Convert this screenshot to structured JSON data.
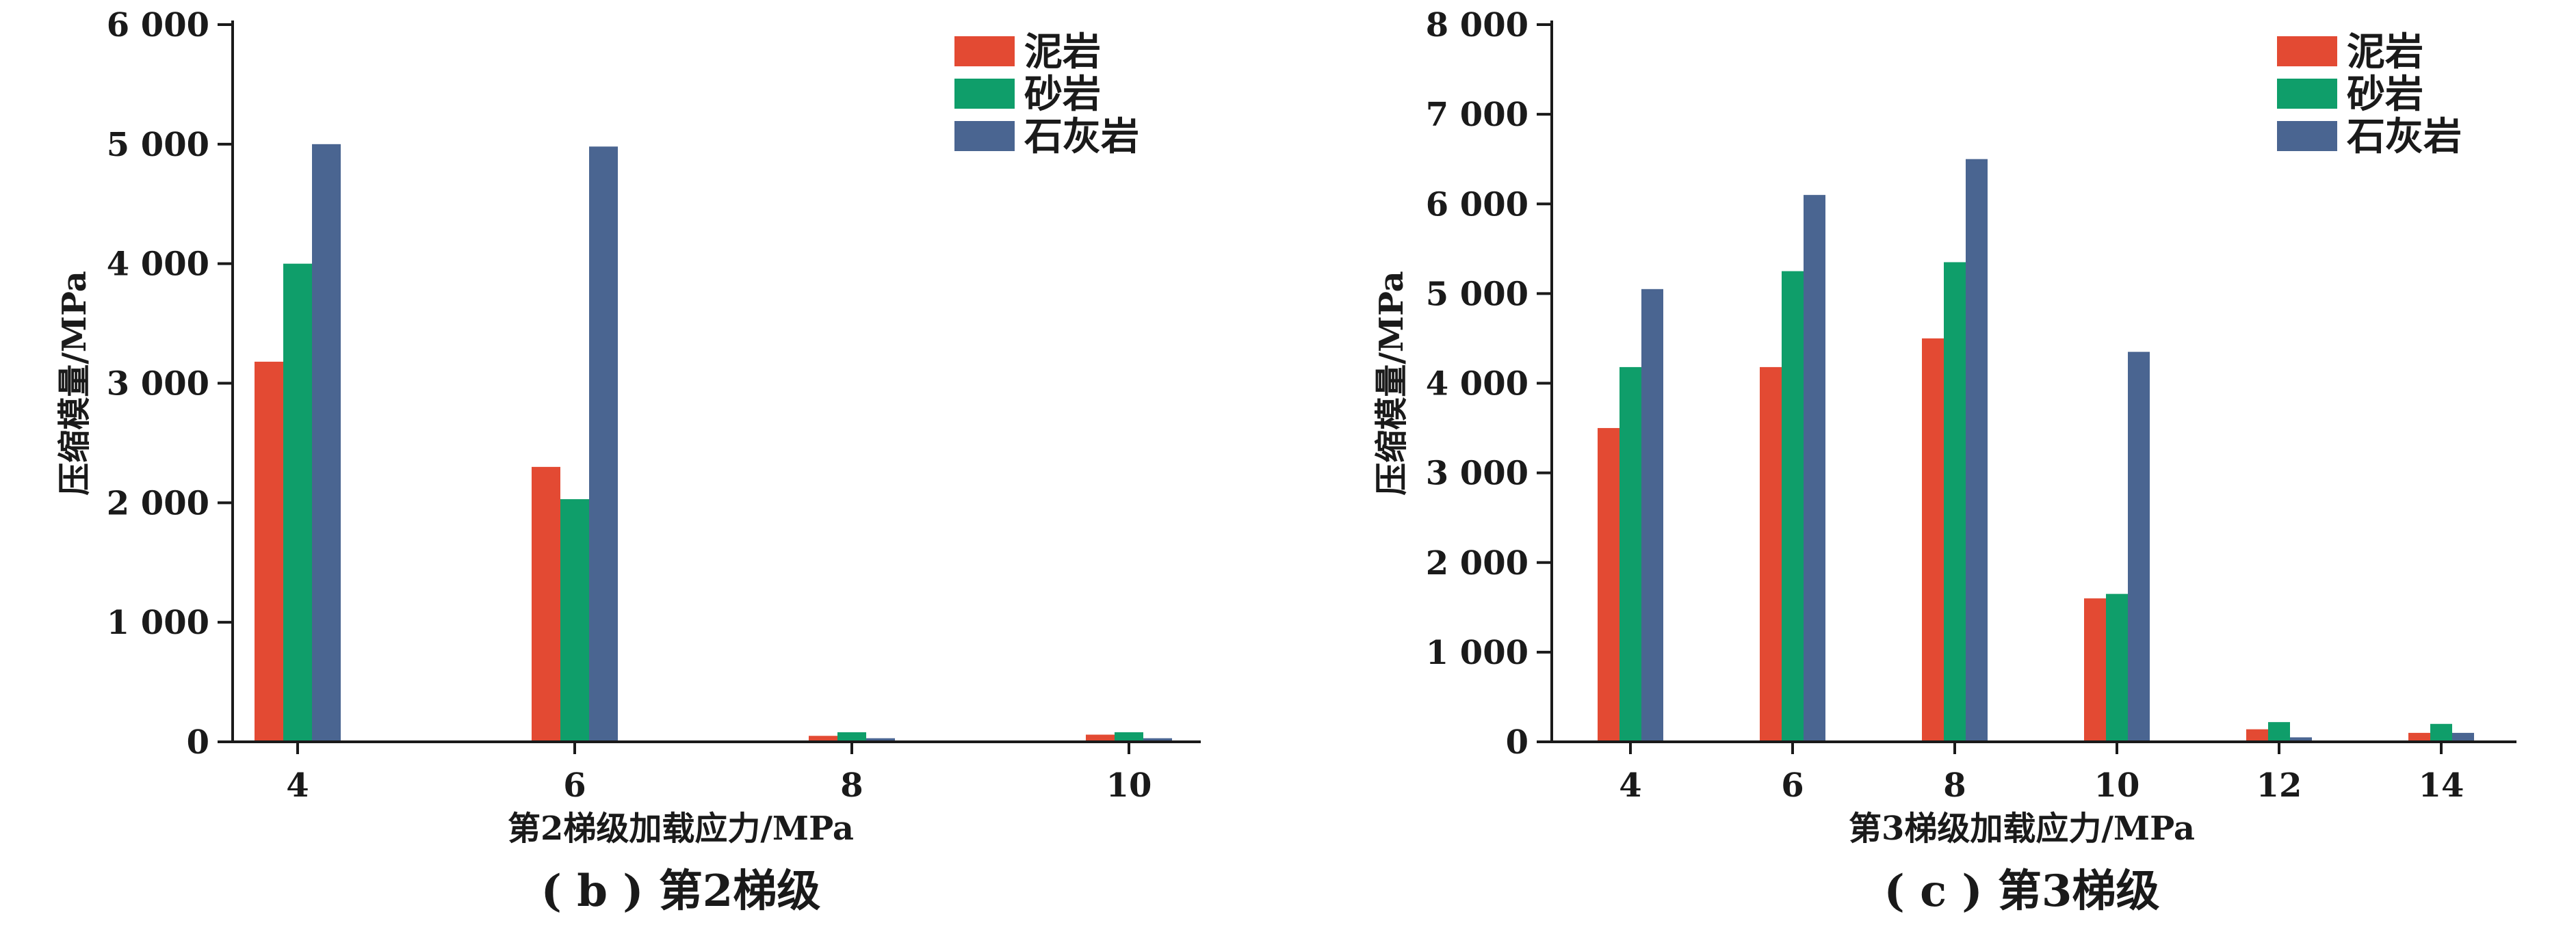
{
  "colors": {
    "mudstone": "#e34a33",
    "sandstone": "#0f9e6a",
    "limestone": "#4a6591",
    "axis": "#1a1a1a"
  },
  "chart_data": [
    {
      "type": "bar",
      "caption": "( b ) 第2梯级",
      "xlabel": "第2梯级加载应力/MPa",
      "ylabel": "压缩模量/MPa",
      "categories": [
        "4",
        "6",
        "8",
        "10"
      ],
      "ylim": [
        0,
        6000
      ],
      "yticks": [
        0,
        1000,
        2000,
        3000,
        4000,
        5000,
        6000
      ],
      "ytick_labels": [
        "0",
        "1 000",
        "2 000",
        "3 000",
        "4 000",
        "5 000",
        "6 000"
      ],
      "legend_position": "top-right",
      "series": [
        {
          "name": "泥岩",
          "color_key": "mudstone",
          "values": [
            3180,
            2300,
            50,
            60
          ]
        },
        {
          "name": "砂岩",
          "color_key": "sandstone",
          "values": [
            4000,
            2030,
            80,
            80
          ]
        },
        {
          "name": "石灰岩",
          "color_key": "limestone",
          "values": [
            5000,
            4980,
            30,
            30
          ]
        }
      ]
    },
    {
      "type": "bar",
      "caption": "( c ) 第3梯级",
      "xlabel": "第3梯级加载应力/MPa",
      "ylabel": "压缩模量/MPa",
      "categories": [
        "4",
        "6",
        "8",
        "10",
        "12",
        "14"
      ],
      "ylim": [
        0,
        8000
      ],
      "yticks": [
        0,
        1000,
        2000,
        3000,
        4000,
        5000,
        6000,
        7000,
        8000
      ],
      "ytick_labels": [
        "0",
        "1 000",
        "2 000",
        "3 000",
        "4 000",
        "5 000",
        "6 000",
        "7 000",
        "8 000"
      ],
      "legend_position": "top-right",
      "series": [
        {
          "name": "泥岩",
          "color_key": "mudstone",
          "values": [
            3500,
            4180,
            4500,
            1600,
            140,
            100
          ]
        },
        {
          "name": "砂岩",
          "color_key": "sandstone",
          "values": [
            4180,
            5250,
            5350,
            1650,
            220,
            200
          ]
        },
        {
          "name": "石灰岩",
          "color_key": "limestone",
          "values": [
            5050,
            6100,
            6500,
            4350,
            50,
            100
          ]
        }
      ]
    }
  ]
}
